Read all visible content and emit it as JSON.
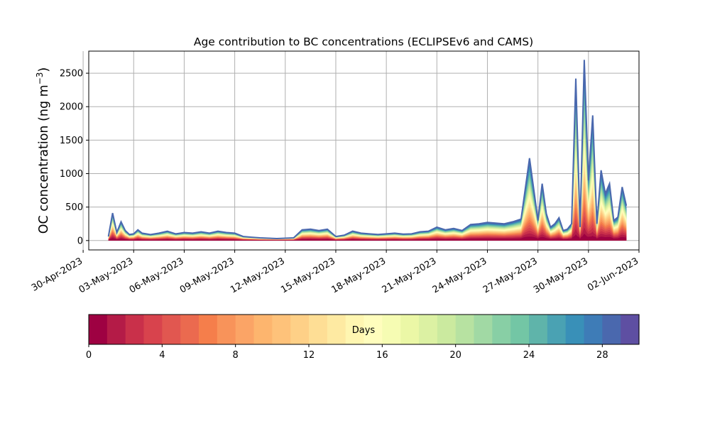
{
  "chart_data": {
    "type": "area",
    "title": "Age contribution to BC concentrations (ECLIPSEv6 and CAMS)",
    "ylabel": "OC concentration (ng m",
    "ylabel_superscript": "−3",
    "ylabel_suffix": ")",
    "xlabel": "",
    "grid": true,
    "ylim": [
      -140,
      2830
    ],
    "yticks": [
      0,
      500,
      1000,
      1500,
      2000,
      2500
    ],
    "xlim": [
      "2023-04-30T08:00",
      "2023-06-02T00:00"
    ],
    "xticks": [
      "2023-04-30",
      "2023-05-03",
      "2023-05-06",
      "2023-05-09",
      "2023-05-12",
      "2023-05-15",
      "2023-05-18",
      "2023-05-21",
      "2023-05-24",
      "2023-05-27",
      "2023-05-30",
      "2023-06-02"
    ],
    "xtick_labels": [
      "30-Apr-2023",
      "03-May-2023",
      "06-May-2023",
      "09-May-2023",
      "12-May-2023",
      "15-May-2023",
      "18-May-2023",
      "21-May-2023",
      "24-May-2023",
      "27-May-2023",
      "30-May-2023",
      "02-Jun-2023"
    ],
    "total_concentration": {
      "x": [
        "2023-05-01T12:00",
        "2023-05-01T18:00",
        "2023-05-02T00:00",
        "2023-05-02T06:00",
        "2023-05-02T12:00",
        "2023-05-02T18:00",
        "2023-05-03T00:00",
        "2023-05-03T06:00",
        "2023-05-03T12:00",
        "2023-05-04T00:00",
        "2023-05-04T12:00",
        "2023-05-05T00:00",
        "2023-05-05T12:00",
        "2023-05-06T00:00",
        "2023-05-06T12:00",
        "2023-05-07T00:00",
        "2023-05-07T12:00",
        "2023-05-08T00:00",
        "2023-05-08T12:00",
        "2023-05-09T00:00",
        "2023-05-09T12:00",
        "2023-05-10T00:00",
        "2023-05-10T12:00",
        "2023-05-11T00:00",
        "2023-05-11T12:00",
        "2023-05-12T00:00",
        "2023-05-12T12:00",
        "2023-05-13T00:00",
        "2023-05-13T12:00",
        "2023-05-14T00:00",
        "2023-05-14T12:00",
        "2023-05-15T00:00",
        "2023-05-15T12:00",
        "2023-05-16T00:00",
        "2023-05-16T12:00",
        "2023-05-17T00:00",
        "2023-05-17T12:00",
        "2023-05-18T00:00",
        "2023-05-18T12:00",
        "2023-05-19T00:00",
        "2023-05-19T12:00",
        "2023-05-20T00:00",
        "2023-05-20T12:00",
        "2023-05-21T00:00",
        "2023-05-21T12:00",
        "2023-05-22T00:00",
        "2023-05-22T12:00",
        "2023-05-23T00:00",
        "2023-05-23T12:00",
        "2023-05-24T00:00",
        "2023-05-24T12:00",
        "2023-05-25T00:00",
        "2023-05-25T12:00",
        "2023-05-26T00:00",
        "2023-05-26T12:00",
        "2023-05-27T00:00",
        "2023-05-27T06:00",
        "2023-05-27T12:00",
        "2023-05-27T18:00",
        "2023-05-28T00:00",
        "2023-05-28T06:00",
        "2023-05-28T12:00",
        "2023-05-28T18:00",
        "2023-05-29T00:00",
        "2023-05-29T06:00",
        "2023-05-29T12:00",
        "2023-05-29T18:00",
        "2023-05-30T00:00",
        "2023-05-30T06:00",
        "2023-05-30T12:00",
        "2023-05-30T18:00",
        "2023-05-31T00:00",
        "2023-05-31T06:00",
        "2023-05-31T12:00",
        "2023-05-31T18:00",
        "2023-06-01T00:00",
        "2023-06-01T06:00"
      ],
      "y": [
        60,
        410,
        120,
        280,
        150,
        90,
        100,
        160,
        110,
        90,
        110,
        140,
        100,
        120,
        110,
        130,
        110,
        140,
        120,
        110,
        60,
        50,
        40,
        35,
        30,
        35,
        40,
        160,
        170,
        150,
        170,
        60,
        80,
        140,
        110,
        100,
        90,
        100,
        110,
        95,
        100,
        130,
        140,
        200,
        160,
        180,
        150,
        240,
        250,
        270,
        260,
        250,
        280,
        320,
        1230,
        300,
        850,
        400,
        200,
        250,
        340,
        150,
        170,
        250,
        2420,
        200,
        2700,
        900,
        1870,
        250,
        1050,
        700,
        850,
        300,
        350,
        800,
        520
      ]
    },
    "legend_title": "Days",
    "colorbar": {
      "label": "Days",
      "range": [
        0,
        30
      ],
      "ticks": [
        0,
        4,
        8,
        12,
        16,
        20,
        24,
        28
      ],
      "colors": [
        "#9e0142",
        "#b41b47",
        "#c9304a",
        "#d8434d",
        "#e15750",
        "#eb6a4f",
        "#f57e4b",
        "#f8935a",
        "#fba466",
        "#fdb56e",
        "#fec27a",
        "#fed087",
        "#fede95",
        "#feeaa2",
        "#fff6b1",
        "#fffdbd",
        "#f6fcb3",
        "#ebf7a6",
        "#dcf1a3",
        "#cbea9f",
        "#b7e2a1",
        "#a1d9a4",
        "#88cfa5",
        "#73c6a5",
        "#5fb4aa",
        "#4aa2b3",
        "#3990b8",
        "#3e7cb7",
        "#4a68ae",
        "#5e4fa2"
      ]
    }
  }
}
